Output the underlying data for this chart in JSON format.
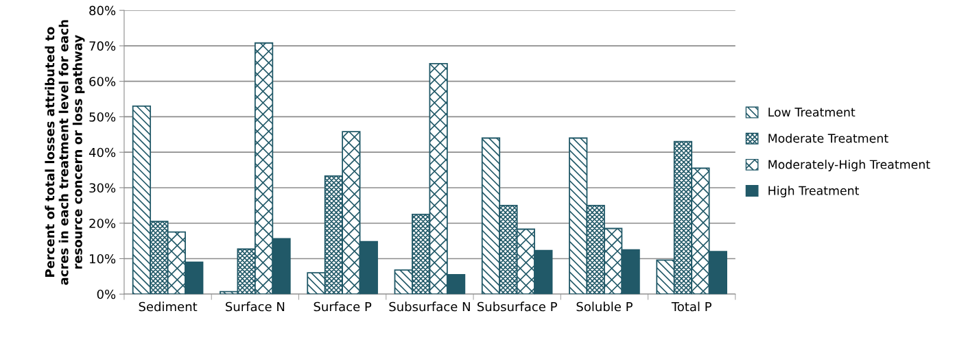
{
  "chart_data": {
    "type": "bar",
    "ylabel": "Percent of total losses attributed to\nacres in each treatment level for each\nresource concern or loss pathway",
    "categories": [
      "Sediment",
      "Surface N",
      "Surface P",
      "Subsurface N",
      "Subsurface P",
      "Soluble P",
      "Total P"
    ],
    "series": [
      {
        "name": "Low Treatment",
        "color": "#215968",
        "values": [
          53,
          0.7,
          6,
          6.8,
          44,
          44,
          9.6
        ]
      },
      {
        "name": "Moderate Treatment",
        "color": "#215968",
        "values": [
          20.5,
          12.7,
          33.3,
          22.5,
          25,
          25,
          43
        ]
      },
      {
        "name": "Moderately-High Treatment",
        "color": "#215968",
        "values": [
          17.5,
          70.8,
          45.8,
          65,
          18.3,
          18.5,
          35.5
        ]
      },
      {
        "name": "High Treatment",
        "color": "#215968",
        "values": [
          9,
          15.6,
          14.8,
          5.5,
          12.3,
          12.5,
          12
        ]
      }
    ],
    "ylim": [
      0,
      80
    ],
    "yticks": [
      {
        "value": 0,
        "label": "0%"
      },
      {
        "value": 10,
        "label": "10%"
      },
      {
        "value": 20,
        "label": "20%"
      },
      {
        "value": 30,
        "label": "30%"
      },
      {
        "value": 40,
        "label": "40%"
      },
      {
        "value": 50,
        "label": "50%"
      },
      {
        "value": 60,
        "label": "60%"
      },
      {
        "value": 70,
        "label": "70%"
      },
      {
        "value": 80,
        "label": "80%"
      }
    ],
    "grid": "y",
    "legend": "right"
  }
}
